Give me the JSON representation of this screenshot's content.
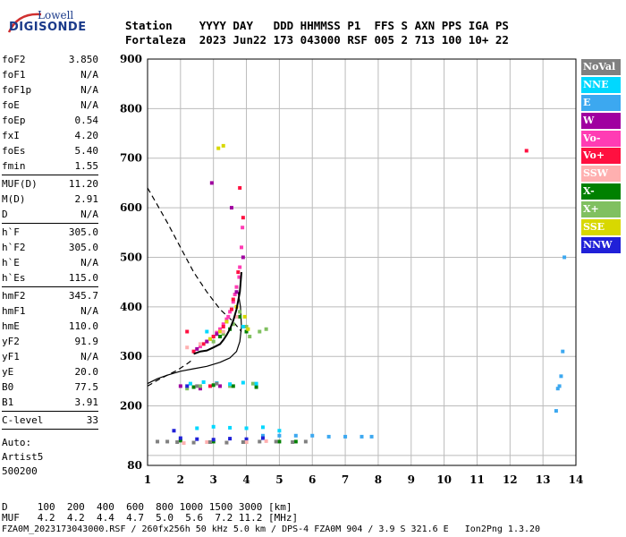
{
  "logo": {
    "line1": "Lowell",
    "line2": "DIGISONDE"
  },
  "header": {
    "line1": "Station    YYYY DAY   DDD HHMMSS P1  FFS S AXN PPS IGA PS",
    "line2": "Fortaleza  2023 Jun22 173 043000 RSF 005 2 713 100 10+ 22"
  },
  "parameters": [
    {
      "label": "foF2",
      "value": "3.850"
    },
    {
      "label": "foF1",
      "value": "N/A"
    },
    {
      "label": "foF1p",
      "value": "N/A"
    },
    {
      "label": "foE",
      "value": "N/A"
    },
    {
      "label": "foEp",
      "value": "0.54"
    },
    {
      "label": "fxI",
      "value": "4.20"
    },
    {
      "label": "foEs",
      "value": "5.40"
    },
    {
      "label": "fmin",
      "value": "1.55"
    },
    {
      "label": "MUF(D)",
      "value": "11.20",
      "sep": true
    },
    {
      "label": "M(D)",
      "value": "2.91"
    },
    {
      "label": "D",
      "value": "N/A"
    },
    {
      "label": "h`F",
      "value": "305.0",
      "sep": true
    },
    {
      "label": "h`F2",
      "value": "305.0"
    },
    {
      "label": "h`E",
      "value": "N/A"
    },
    {
      "label": "h`Es",
      "value": "115.0"
    },
    {
      "label": "hmF2",
      "value": "345.7",
      "sep": true
    },
    {
      "label": "hmF1",
      "value": "N/A"
    },
    {
      "label": "hmE",
      "value": "110.0"
    },
    {
      "label": "yF2",
      "value": "91.9"
    },
    {
      "label": "yF1",
      "value": "N/A"
    },
    {
      "label": "yE",
      "value": "20.0"
    },
    {
      "label": "B0",
      "value": "77.5"
    },
    {
      "label": "B1",
      "value": "3.91"
    },
    {
      "label": "C-level",
      "value": "33",
      "sep": true
    }
  ],
  "auto": {
    "line1": "Auto:",
    "line2": "Artist5",
    "line3": "500200"
  },
  "legend": [
    {
      "label": "NoVal",
      "color": "#808080"
    },
    {
      "label": "NNE",
      "color": "#00d8ff"
    },
    {
      "label": "E",
      "color": "#3ca8f0"
    },
    {
      "label": "W",
      "color": "#a000a0"
    },
    {
      "label": "Vo-",
      "color": "#ff3cb4"
    },
    {
      "label": "Vo+",
      "color": "#ff1040"
    },
    {
      "label": "SSW",
      "color": "#ffb0b0"
    },
    {
      "label": "X-",
      "color": "#008000"
    },
    {
      "label": "X+",
      "color": "#80c060"
    },
    {
      "label": "SSE",
      "color": "#d8d800"
    },
    {
      "label": "NNW",
      "color": "#2020d8"
    }
  ],
  "bottom": {
    "row1": "D     100  200  400  600  800 1000 1500 3000 [km]",
    "row2": "MUF   4.2  4.2  4.4  4.7  5.0  5.6  7.2 11.2 [MHz]"
  },
  "footer": "FZA0M_2023173043000.RSF / 260fx256h 50 kHz 5.0 km / DPS-4 FZA0M 904 / 3.9 S 321.6 E   Ion2Png 1.3.20",
  "chart_data": {
    "type": "scatter",
    "xlim": [
      1,
      14
    ],
    "ylim": [
      80,
      900
    ],
    "x_ticks": [
      1,
      2,
      3,
      4,
      5,
      6,
      7,
      8,
      9,
      10,
      11,
      12,
      13,
      14
    ],
    "y_ticks": [
      80,
      100,
      200,
      300,
      400,
      500,
      600,
      700,
      800,
      900
    ],
    "y_tick_labels": [
      80,
      200,
      300,
      400,
      500,
      600,
      700,
      800,
      900
    ],
    "grid": true,
    "xlabel": "",
    "ylabel": "",
    "series": [
      {
        "legend": "Vo-",
        "x": [
          2.6,
          2.8,
          3.0,
          3.2,
          3.3,
          3.4,
          3.5,
          3.6,
          3.7,
          3.8,
          3.85,
          2.9,
          3.1,
          3.45,
          3.65,
          3.78,
          3.88
        ],
        "y": [
          320,
          330,
          340,
          355,
          365,
          375,
          390,
          410,
          440,
          480,
          520,
          335,
          348,
          380,
          425,
          460,
          560
        ]
      },
      {
        "legend": "Vo+",
        "x": [
          2.4,
          2.7,
          3.0,
          3.3,
          3.55,
          3.75,
          3.8,
          2.2,
          2.9,
          3.6,
          12.5,
          3.9
        ],
        "y": [
          310,
          325,
          340,
          360,
          395,
          470,
          640,
          350,
          240,
          415,
          715,
          580
        ]
      },
      {
        "legend": "W",
        "x": [
          2.5,
          2.8,
          3.1,
          3.4,
          3.7,
          2.0,
          2.6,
          3.2,
          3.9,
          2.95,
          3.55
        ],
        "y": [
          315,
          330,
          345,
          370,
          430,
          240,
          235,
          240,
          500,
          650,
          600
        ]
      },
      {
        "legend": "X+",
        "x": [
          3.0,
          3.3,
          3.6,
          3.8,
          4.0,
          4.1,
          2.2,
          2.6,
          3.5,
          4.2,
          4.4,
          4.6
        ],
        "y": [
          330,
          345,
          365,
          390,
          360,
          340,
          235,
          240,
          240,
          245,
          350,
          355
        ]
      },
      {
        "legend": "X-",
        "x": [
          3.2,
          3.5,
          3.8,
          4.0,
          2.4,
          3.0,
          3.6,
          4.3,
          2.0,
          3.0,
          4.0,
          5.0,
          5.5
        ],
        "y": [
          340,
          355,
          380,
          350,
          238,
          242,
          240,
          238,
          130,
          128,
          127,
          128,
          128
        ]
      },
      {
        "legend": "SSE",
        "x": [
          2.9,
          3.2,
          3.4,
          3.7,
          3.95,
          4.05,
          3.15,
          3.3
        ],
        "y": [
          335,
          350,
          370,
          400,
          380,
          355,
          720,
          725
        ]
      },
      {
        "legend": "NNE",
        "x": [
          2.3,
          2.7,
          3.1,
          3.5,
          3.9,
          4.3,
          2.5,
          3.0,
          3.5,
          4.0,
          4.5,
          5.0,
          2.8,
          3.9
        ],
        "y": [
          245,
          248,
          246,
          244,
          247,
          245,
          155,
          158,
          156,
          155,
          157,
          150,
          350,
          360
        ]
      },
      {
        "legend": "E",
        "x": [
          4.5,
          5.0,
          5.5,
          6.0,
          6.5,
          7.0,
          7.5,
          7.8,
          13.4,
          13.45,
          13.5,
          13.55,
          13.6,
          13.65
        ],
        "y": [
          140,
          140,
          140,
          140,
          138,
          138,
          138,
          138,
          190,
          235,
          240,
          260,
          310,
          500
        ]
      },
      {
        "legend": "NNW",
        "x": [
          2.0,
          2.5,
          3.0,
          3.5,
          4.0,
          4.5,
          1.8,
          2.2
        ],
        "y": [
          135,
          133,
          132,
          134,
          133,
          135,
          150,
          240
        ]
      },
      {
        "legend": "SSW",
        "x": [
          2.2,
          2.6,
          3.3,
          3.7,
          2.1,
          2.8,
          3.4,
          4.0,
          4.6
        ],
        "y": [
          318,
          325,
          350,
          380,
          125,
          127,
          126,
          127,
          129
        ]
      },
      {
        "legend": "NoVal",
        "x": [
          1.3,
          1.6,
          1.9,
          2.4,
          2.9,
          3.4,
          3.9,
          4.4,
          4.9,
          5.4,
          5.8,
          2.5,
          3.1
        ],
        "y": [
          128,
          128,
          127,
          126,
          127,
          126,
          127,
          128,
          128,
          127,
          128,
          240,
          245
        ]
      }
    ],
    "trace_profile": {
      "x": [
        2.4,
        2.6,
        2.8,
        3.0,
        3.2,
        3.3,
        3.4,
        3.5,
        3.6,
        3.7,
        3.8,
        3.85
      ],
      "y": [
        305,
        310,
        312,
        318,
        325,
        333,
        343,
        355,
        372,
        395,
        430,
        470
      ]
    },
    "profile_curve": {
      "x": [
        1.0,
        1.3,
        1.6,
        2.0,
        2.4,
        2.8,
        3.2,
        3.5,
        3.7,
        3.8,
        3.85,
        3.82,
        3.75
      ],
      "y": [
        245,
        255,
        262,
        270,
        275,
        280,
        288,
        297,
        310,
        330,
        360,
        400,
        430
      ]
    },
    "muf_curve_dashed": {
      "x": [
        1.0,
        1.3,
        1.6,
        2.0,
        2.4,
        2.8,
        3.2,
        3.6,
        3.85
      ],
      "y": [
        640,
        605,
        570,
        520,
        470,
        430,
        395,
        370,
        350
      ]
    },
    "lower_dashed": {
      "x": [
        1.0,
        1.3,
        1.6,
        1.9,
        2.2,
        2.4
      ],
      "y": [
        240,
        252,
        262,
        272,
        285,
        295
      ]
    }
  }
}
